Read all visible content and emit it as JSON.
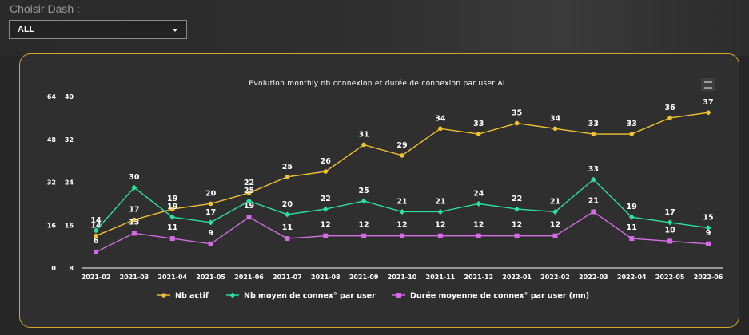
{
  "selector": {
    "label": "Choisir Dash :",
    "value": "ALL"
  },
  "colors": {
    "nb_actif": "#f0c232",
    "nb_connex": "#2de0a0",
    "duree": "#d56ce6",
    "axis": "#ffffff",
    "panel_border": "#d4a82a"
  },
  "chart_data": {
    "type": "line",
    "title": "Evolution monthly nb connexion et durée de connexion par user ALL",
    "xlabel": "",
    "ylabel": "",
    "x": [
      "2021-02",
      "2021-03",
      "2021-04",
      "2021-05",
      "2021-06",
      "2021-07",
      "2021-08",
      "2021-09",
      "2021-10",
      "2021-11",
      "2021-12",
      "2022-01",
      "2022-02",
      "2022-03",
      "2022-04",
      "2022-05",
      "2022-06"
    ],
    "left_axis": {
      "ticks": [
        0,
        16,
        32,
        48,
        64
      ],
      "range": [
        0,
        64
      ]
    },
    "right_axis": {
      "ticks": [
        8,
        16,
        24,
        32,
        40
      ],
      "range": [
        8,
        40
      ]
    },
    "legend_position": "bottom",
    "grid": false,
    "series": [
      {
        "name": "Nb actif",
        "axis": "right",
        "marker": "circle",
        "values": [
          14,
          17,
          19,
          20,
          22,
          25,
          26,
          31,
          29,
          34,
          33,
          35,
          34,
          33,
          33,
          36,
          37
        ]
      },
      {
        "name": "Nb moyen de connex° par user",
        "axis": "left",
        "marker": "diamond",
        "values": [
          14,
          30,
          19,
          17,
          25,
          20,
          22,
          25,
          21,
          21,
          24,
          22,
          21,
          33,
          19,
          17,
          15
        ]
      },
      {
        "name": "Durée moyenne de connex° par user (mn)",
        "axis": "left",
        "marker": "square",
        "values": [
          6,
          13,
          11,
          9,
          19,
          11,
          12,
          12,
          12,
          12,
          12,
          12,
          12,
          21,
          11,
          10,
          9
        ]
      }
    ]
  }
}
